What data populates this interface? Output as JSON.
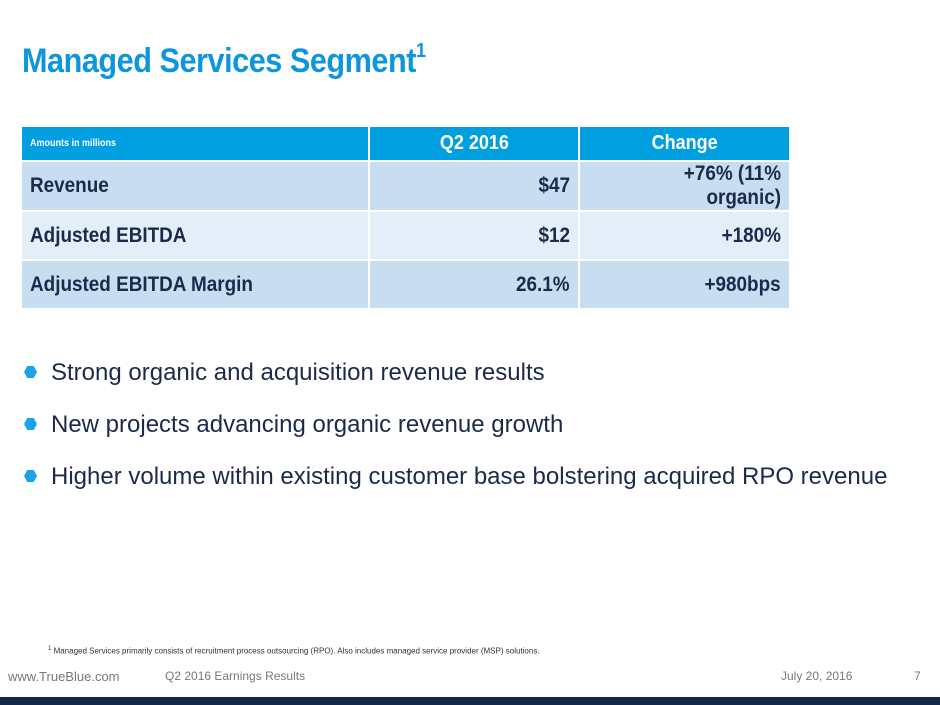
{
  "title": {
    "text": "Managed Services Segment",
    "sup": "1"
  },
  "table": {
    "headers": [
      "Amounts in millions",
      "Q2 2016",
      "Change"
    ],
    "rows": [
      {
        "label": "Revenue",
        "q2": "$47",
        "change": "+76% (11% organic)"
      },
      {
        "label": "Adjusted EBITDA",
        "q2": "$12",
        "change": "+180%"
      },
      {
        "label": "Adjusted EBITDA Margin",
        "q2": "26.1%",
        "change": "+980bps"
      }
    ]
  },
  "bullets": [
    "Strong organic and acquisition revenue results",
    "New projects advancing organic revenue growth",
    "Higher volume within existing customer base bolstering acquired RPO revenue"
  ],
  "footnote": {
    "mark": "1",
    "text": " Managed Services primarily consists of recruitment process outsourcing (RPO). Also includes managed service provider (MSP) solutions."
  },
  "footer": {
    "website": "www.TrueBlue.com",
    "deck": "Q2 2016 Earnings Results",
    "date": "July 20, 2016",
    "page": "7"
  }
}
